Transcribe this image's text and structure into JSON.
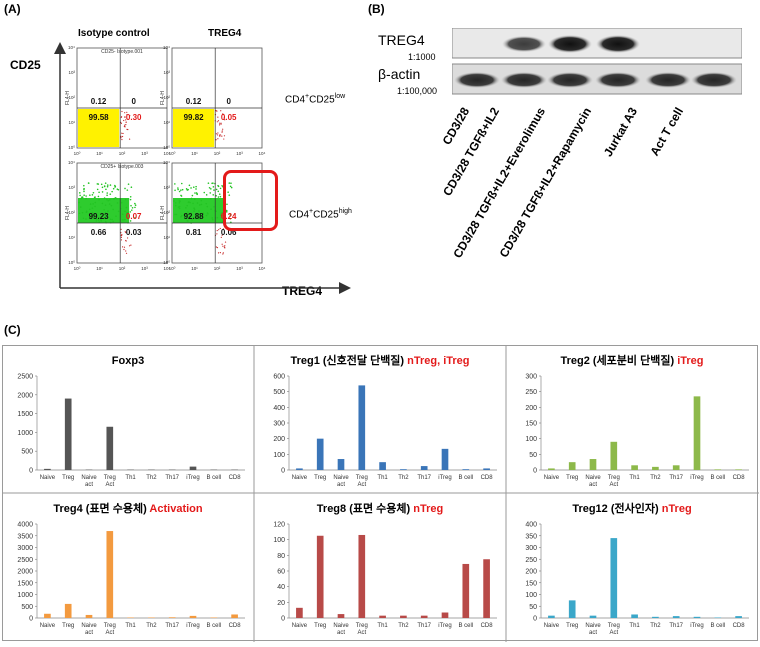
{
  "panel_labels": {
    "a": "(A)",
    "b": "(B)",
    "c": "(C)"
  },
  "panel_a": {
    "col_headers": [
      "Isotype control",
      "TREG4"
    ],
    "y_axis": "CD25",
    "x_axis": "TREG4",
    "row_labels": [
      {
        "text": "CD4",
        "sup": "+",
        "text2": "CD25",
        "sup2": "low"
      },
      {
        "text": "CD4",
        "sup": "+",
        "text2": "CD25",
        "sup2": "high"
      }
    ],
    "plots": [
      {
        "header": "CD25- Isotype.001",
        "ul": "0.12",
        "ur": "0",
        "ll": "99.58",
        "lr": "0.30",
        "fill": "yellow"
      },
      {
        "header": "",
        "ul": "0.12",
        "ur": "0",
        "ll": "99.82",
        "lr": "0.05",
        "fill": "yellow"
      },
      {
        "header": "CD25+ Isotype.003",
        "ul": "99.23",
        "ur": "0.07",
        "ll": "0.66",
        "lr": "0.03",
        "fill": "green"
      },
      {
        "header": "",
        "ul": "92.88",
        "ur": "6.24",
        "ll": "0.81",
        "lr": "0.06",
        "fill": "green"
      }
    ],
    "axis_small": {
      "y": "FL4-H",
      "x": "FL2-H"
    }
  },
  "panel_b": {
    "rows": [
      {
        "label": "TREG4",
        "dilution": "1:1000"
      },
      {
        "label": "β-actin",
        "dilution": "1:100,000"
      }
    ],
    "lanes": [
      "CD3/28",
      "CD3/28 TGFß+IL2",
      "CD3/28 TGFß+IL2+Everolimus",
      "CD3/28 TGFß+IL2+Rapamycin",
      "Jurkat A3",
      "Act T cell"
    ],
    "treg4_band_intensity": [
      0,
      0.8,
      1.0,
      1.0,
      0,
      0
    ],
    "actin_band_intensity": [
      0.9,
      0.9,
      0.9,
      0.9,
      0.9,
      0.9
    ]
  },
  "chart_data": [
    {
      "type": "bar",
      "title": "Foxp3",
      "title_highlight": "",
      "categories": [
        "Naive",
        "Treg",
        "Naive act",
        "Treg Act",
        "Th1",
        "Th2",
        "Th17",
        "iTreg",
        "B cell",
        "CD8"
      ],
      "values": [
        30,
        1900,
        10,
        1150,
        10,
        10,
        10,
        90,
        10,
        10
      ],
      "ylim": [
        0,
        2500
      ],
      "yticks": [
        0,
        500,
        1000,
        1500,
        2000,
        2500
      ],
      "color": "#555555"
    },
    {
      "type": "bar",
      "title": "Treg1 (신호전달 단백질) ",
      "title_highlight": "nTreg, iTreg",
      "categories": [
        "Naive",
        "Treg",
        "Naive act",
        "Treg Act",
        "Th1",
        "Th2",
        "Th17",
        "iTreg",
        "B cell",
        "CD8"
      ],
      "values": [
        10,
        200,
        70,
        540,
        50,
        5,
        25,
        135,
        5,
        10
      ],
      "ylim": [
        0,
        600
      ],
      "yticks": [
        0,
        100,
        200,
        300,
        400,
        500,
        600
      ],
      "color": "#3a75b8"
    },
    {
      "type": "bar",
      "title": "Treg2 (세포분비 단백질) ",
      "title_highlight": "iTreg",
      "categories": [
        "Naive",
        "Treg",
        "Naive act",
        "Treg Act",
        "Th1",
        "Th2",
        "Th17",
        "iTreg",
        "B cell",
        "CD8"
      ],
      "values": [
        5,
        25,
        35,
        90,
        15,
        10,
        15,
        235,
        2,
        2
      ],
      "ylim": [
        0,
        300
      ],
      "yticks": [
        0,
        50,
        100,
        150,
        200,
        250,
        300
      ],
      "color": "#8db94a"
    },
    {
      "type": "bar",
      "title": "Treg4 (표면 수용체) ",
      "title_highlight": "Activation",
      "categories": [
        "Naive",
        "Treg",
        "Naive act",
        "Treg Act",
        "Th1",
        "Th2",
        "Th17",
        "iTreg",
        "B cell",
        "CD8"
      ],
      "values": [
        180,
        600,
        130,
        3700,
        20,
        20,
        30,
        90,
        20,
        150
      ],
      "ylim": [
        0,
        4000
      ],
      "yticks": [
        0,
        500,
        1000,
        1500,
        2000,
        2500,
        3000,
        3500,
        4000
      ],
      "color": "#f39a3f"
    },
    {
      "type": "bar",
      "title": "Treg8 (표면 수용체) ",
      "title_highlight": "nTreg",
      "categories": [
        "Naive",
        "Treg",
        "Naive act",
        "Treg Act",
        "Th1",
        "Th2",
        "Th17",
        "iTreg",
        "B cell",
        "CD8"
      ],
      "values": [
        13,
        105,
        5,
        106,
        3,
        3,
        3,
        7,
        69,
        75
      ],
      "ylim": [
        0,
        120
      ],
      "yticks": [
        0,
        20,
        40,
        60,
        80,
        100,
        120
      ],
      "color": "#b84a48"
    },
    {
      "type": "bar",
      "title": "Treg12 (전사인자) ",
      "title_highlight": "nTreg",
      "categories": [
        "Naive",
        "Treg",
        "Naive act",
        "Treg Act",
        "Th1",
        "Th2",
        "Th17",
        "iTreg",
        "B cell",
        "CD8"
      ],
      "values": [
        10,
        75,
        10,
        340,
        15,
        5,
        8,
        5,
        2,
        8
      ],
      "ylim": [
        0,
        400
      ],
      "yticks": [
        0,
        50,
        100,
        150,
        200,
        250,
        300,
        350,
        400
      ],
      "color": "#3ba7c9"
    }
  ]
}
